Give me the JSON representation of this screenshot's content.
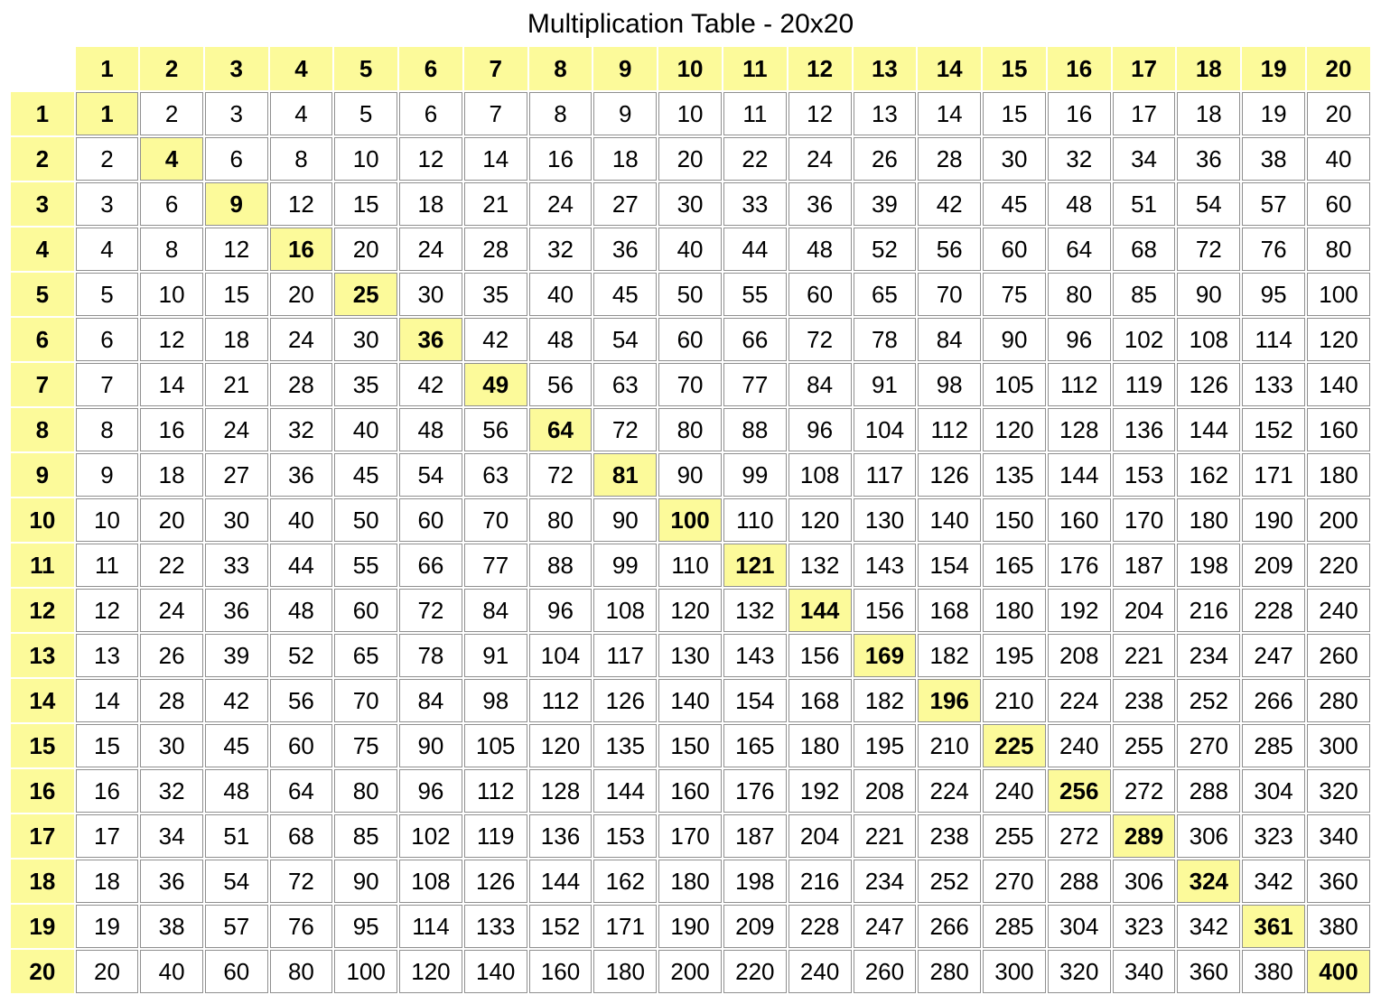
{
  "title": "Multiplication Table - 20x20",
  "table": {
    "type": "table",
    "size": 20,
    "highlight_color": "#fcfa9a",
    "cell_bg": "#ffffff",
    "cell_border": "#8f8f8f",
    "font_family": "Verdana",
    "title_fontsize": 30,
    "cell_fontsize": 26,
    "header_font_weight": 700,
    "diag_font_weight": 700,
    "cell_font_weight": 400,
    "col_headers": [
      "1",
      "2",
      "3",
      "4",
      "5",
      "6",
      "7",
      "8",
      "9",
      "10",
      "11",
      "12",
      "13",
      "14",
      "15",
      "16",
      "17",
      "18",
      "19",
      "20"
    ],
    "row_headers": [
      "1",
      "2",
      "3",
      "4",
      "5",
      "6",
      "7",
      "8",
      "9",
      "10",
      "11",
      "12",
      "13",
      "14",
      "15",
      "16",
      "17",
      "18",
      "19",
      "20"
    ],
    "rows": [
      [
        "1",
        "2",
        "3",
        "4",
        "5",
        "6",
        "7",
        "8",
        "9",
        "10",
        "11",
        "12",
        "13",
        "14",
        "15",
        "16",
        "17",
        "18",
        "19",
        "20"
      ],
      [
        "2",
        "4",
        "6",
        "8",
        "10",
        "12",
        "14",
        "16",
        "18",
        "20",
        "22",
        "24",
        "26",
        "28",
        "30",
        "32",
        "34",
        "36",
        "38",
        "40"
      ],
      [
        "3",
        "6",
        "9",
        "12",
        "15",
        "18",
        "21",
        "24",
        "27",
        "30",
        "33",
        "36",
        "39",
        "42",
        "45",
        "48",
        "51",
        "54",
        "57",
        "60"
      ],
      [
        "4",
        "8",
        "12",
        "16",
        "20",
        "24",
        "28",
        "32",
        "36",
        "40",
        "44",
        "48",
        "52",
        "56",
        "60",
        "64",
        "68",
        "72",
        "76",
        "80"
      ],
      [
        "5",
        "10",
        "15",
        "20",
        "25",
        "30",
        "35",
        "40",
        "45",
        "50",
        "55",
        "60",
        "65",
        "70",
        "75",
        "80",
        "85",
        "90",
        "95",
        "100"
      ],
      [
        "6",
        "12",
        "18",
        "24",
        "30",
        "36",
        "42",
        "48",
        "54",
        "60",
        "66",
        "72",
        "78",
        "84",
        "90",
        "96",
        "102",
        "108",
        "114",
        "120"
      ],
      [
        "7",
        "14",
        "21",
        "28",
        "35",
        "42",
        "49",
        "56",
        "63",
        "70",
        "77",
        "84",
        "91",
        "98",
        "105",
        "112",
        "119",
        "126",
        "133",
        "140"
      ],
      [
        "8",
        "16",
        "24",
        "32",
        "40",
        "48",
        "56",
        "64",
        "72",
        "80",
        "88",
        "96",
        "104",
        "112",
        "120",
        "128",
        "136",
        "144",
        "152",
        "160"
      ],
      [
        "9",
        "18",
        "27",
        "36",
        "45",
        "54",
        "63",
        "72",
        "81",
        "90",
        "99",
        "108",
        "117",
        "126",
        "135",
        "144",
        "153",
        "162",
        "171",
        "180"
      ],
      [
        "10",
        "20",
        "30",
        "40",
        "50",
        "60",
        "70",
        "80",
        "90",
        "100",
        "110",
        "120",
        "130",
        "140",
        "150",
        "160",
        "170",
        "180",
        "190",
        "200"
      ],
      [
        "11",
        "22",
        "33",
        "44",
        "55",
        "66",
        "77",
        "88",
        "99",
        "110",
        "121",
        "132",
        "143",
        "154",
        "165",
        "176",
        "187",
        "198",
        "209",
        "220"
      ],
      [
        "12",
        "24",
        "36",
        "48",
        "60",
        "72",
        "84",
        "96",
        "108",
        "120",
        "132",
        "144",
        "156",
        "168",
        "180",
        "192",
        "204",
        "216",
        "228",
        "240"
      ],
      [
        "13",
        "26",
        "39",
        "52",
        "65",
        "78",
        "91",
        "104",
        "117",
        "130",
        "143",
        "156",
        "169",
        "182",
        "195",
        "208",
        "221",
        "234",
        "247",
        "260"
      ],
      [
        "14",
        "28",
        "42",
        "56",
        "70",
        "84",
        "98",
        "112",
        "126",
        "140",
        "154",
        "168",
        "182",
        "196",
        "210",
        "224",
        "238",
        "252",
        "266",
        "280"
      ],
      [
        "15",
        "30",
        "45",
        "60",
        "75",
        "90",
        "105",
        "120",
        "135",
        "150",
        "165",
        "180",
        "195",
        "210",
        "225",
        "240",
        "255",
        "270",
        "285",
        "300"
      ],
      [
        "16",
        "32",
        "48",
        "64",
        "80",
        "96",
        "112",
        "128",
        "144",
        "160",
        "176",
        "192",
        "208",
        "224",
        "240",
        "256",
        "272",
        "288",
        "304",
        "320"
      ],
      [
        "17",
        "34",
        "51",
        "68",
        "85",
        "102",
        "119",
        "136",
        "153",
        "170",
        "187",
        "204",
        "221",
        "238",
        "255",
        "272",
        "289",
        "306",
        "323",
        "340"
      ],
      [
        "18",
        "36",
        "54",
        "72",
        "90",
        "108",
        "126",
        "144",
        "162",
        "180",
        "198",
        "216",
        "234",
        "252",
        "270",
        "288",
        "306",
        "324",
        "342",
        "360"
      ],
      [
        "19",
        "38",
        "57",
        "76",
        "95",
        "114",
        "133",
        "152",
        "171",
        "190",
        "209",
        "228",
        "247",
        "266",
        "285",
        "304",
        "323",
        "342",
        "361",
        "380"
      ],
      [
        "20",
        "40",
        "60",
        "80",
        "100",
        "120",
        "140",
        "160",
        "180",
        "200",
        "220",
        "240",
        "260",
        "280",
        "300",
        "320",
        "340",
        "360",
        "380",
        "400"
      ]
    ]
  }
}
